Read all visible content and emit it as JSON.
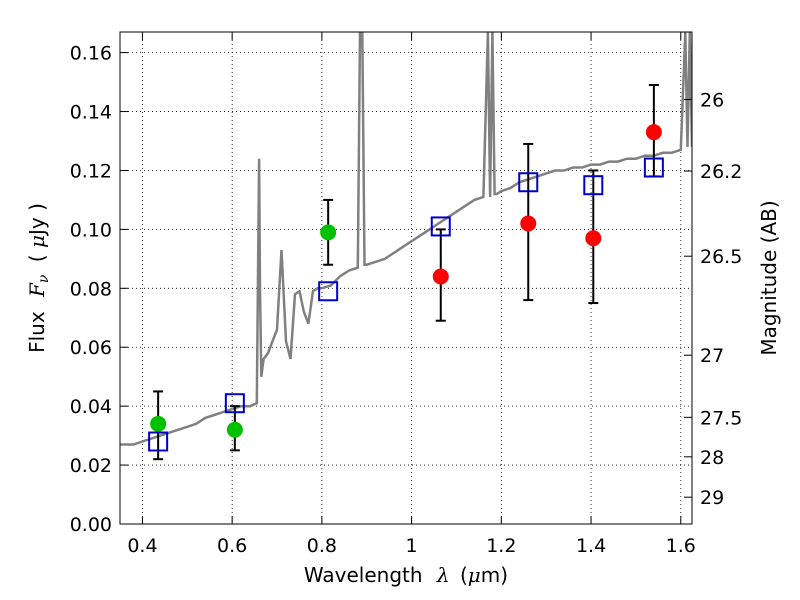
{
  "chart_data": {
    "type": "scatter",
    "xlabel_text": "Wavelength",
    "xlabel_symbol": "λ",
    "xlabel_unit_open": "(",
    "xlabel_unit_mu": "μ",
    "xlabel_unit_rest": "m)",
    "ylabel_text": "Flux",
    "ylabel_symbol": "F",
    "ylabel_symbol_sub": "ν",
    "ylabel_unit_open": "(",
    "ylabel_unit_mu": "μ",
    "ylabel_unit_rest": "Jy )",
    "y2label": "Magnitude (AB)",
    "xlim": [
      0.35,
      1.625
    ],
    "ylim": [
      0.0,
      0.167
    ],
    "grid": true,
    "x_ticks": [
      0.4,
      0.6,
      0.8,
      1.0,
      1.2,
      1.4,
      1.6
    ],
    "x_tick_labels": [
      "0.4",
      "0.6",
      "0.8",
      "1",
      "1.2",
      "1.4",
      "1.6"
    ],
    "y_ticks": [
      0.0,
      0.02,
      0.04,
      0.06,
      0.08,
      0.1,
      0.12,
      0.14,
      0.16
    ],
    "y_tick_labels": [
      "0.00",
      "0.02",
      "0.04",
      "0.06",
      "0.08",
      "0.10",
      "0.12",
      "0.14",
      "0.16"
    ],
    "y2_ticks": [
      {
        "label": "26",
        "flux": 0.1441
      },
      {
        "label": "26.2",
        "flux": 0.1198
      },
      {
        "label": "26.5",
        "flux": 0.0909
      },
      {
        "label": "27",
        "flux": 0.0573
      },
      {
        "label": "27.5",
        "flux": 0.0362
      },
      {
        "label": "28",
        "flux": 0.0228
      },
      {
        "label": "29",
        "flux": 0.0091
      }
    ],
    "series": [
      {
        "color": "#00c000",
        "marker": "circle",
        "points": [
          {
            "x": 0.435,
            "y": 0.034,
            "err_low": 0.022,
            "err_high": 0.045
          },
          {
            "x": 0.606,
            "y": 0.032,
            "err_low": 0.025,
            "err_high": 0.04
          },
          {
            "x": 0.814,
            "y": 0.099,
            "err_low": 0.088,
            "err_high": 0.11
          }
        ]
      },
      {
        "color": "#ff0000",
        "marker": "circle",
        "points": [
          {
            "x": 1.065,
            "y": 0.084,
            "err_low": 0.069,
            "err_high": 0.1
          },
          {
            "x": 1.26,
            "y": 0.102,
            "err_low": 0.076,
            "err_high": 0.129
          },
          {
            "x": 1.405,
            "y": 0.097,
            "err_low": 0.075,
            "err_high": 0.12
          },
          {
            "x": 1.54,
            "y": 0.133,
            "err_low": 0.118,
            "err_high": 0.149
          }
        ]
      },
      {
        "color": "#0000cc",
        "marker": "open-square",
        "points": [
          {
            "x": 0.435,
            "y": 0.028
          },
          {
            "x": 0.606,
            "y": 0.041
          },
          {
            "x": 0.814,
            "y": 0.079
          },
          {
            "x": 1.065,
            "y": 0.101
          },
          {
            "x": 1.26,
            "y": 0.116
          },
          {
            "x": 1.405,
            "y": 0.115
          },
          {
            "x": 1.54,
            "y": 0.121
          }
        ]
      }
    ],
    "model_spectrum": {
      "color": "#808080",
      "x": [
        0.35,
        0.38,
        0.4,
        0.42,
        0.44,
        0.46,
        0.48,
        0.5,
        0.52,
        0.54,
        0.56,
        0.58,
        0.6,
        0.62,
        0.64,
        0.655,
        0.66,
        0.662,
        0.665,
        0.67,
        0.68,
        0.69,
        0.7,
        0.71,
        0.72,
        0.73,
        0.74,
        0.75,
        0.76,
        0.77,
        0.78,
        0.79,
        0.8,
        0.82,
        0.84,
        0.86,
        0.88,
        0.885,
        0.89,
        0.895,
        0.9,
        0.92,
        0.94,
        0.96,
        0.98,
        1.0,
        1.02,
        1.04,
        1.06,
        1.08,
        1.1,
        1.12,
        1.14,
        1.16,
        1.17,
        1.175,
        1.18,
        1.185,
        1.19,
        1.2,
        1.22,
        1.24,
        1.26,
        1.28,
        1.3,
        1.32,
        1.34,
        1.36,
        1.38,
        1.4,
        1.42,
        1.44,
        1.46,
        1.48,
        1.5,
        1.52,
        1.54,
        1.56,
        1.58,
        1.6,
        1.61,
        1.615,
        1.62,
        1.625
      ],
      "y": [
        0.027,
        0.027,
        0.028,
        0.029,
        0.03,
        0.031,
        0.032,
        0.033,
        0.034,
        0.036,
        0.037,
        0.038,
        0.039,
        0.04,
        0.04,
        0.041,
        0.124,
        0.08,
        0.05,
        0.056,
        0.058,
        0.062,
        0.066,
        0.093,
        0.062,
        0.056,
        0.078,
        0.079,
        0.072,
        0.068,
        0.079,
        0.08,
        0.08,
        0.081,
        0.084,
        0.086,
        0.087,
        0.167,
        0.167,
        0.088,
        0.088,
        0.089,
        0.09,
        0.092,
        0.094,
        0.096,
        0.098,
        0.1,
        0.102,
        0.104,
        0.106,
        0.108,
        0.11,
        0.111,
        0.167,
        0.111,
        0.167,
        0.112,
        0.112,
        0.113,
        0.114,
        0.116,
        0.117,
        0.118,
        0.119,
        0.12,
        0.12,
        0.121,
        0.121,
        0.122,
        0.122,
        0.123,
        0.123,
        0.124,
        0.124,
        0.125,
        0.125,
        0.126,
        0.126,
        0.127,
        0.167,
        0.128,
        0.167,
        0.128
      ]
    }
  }
}
